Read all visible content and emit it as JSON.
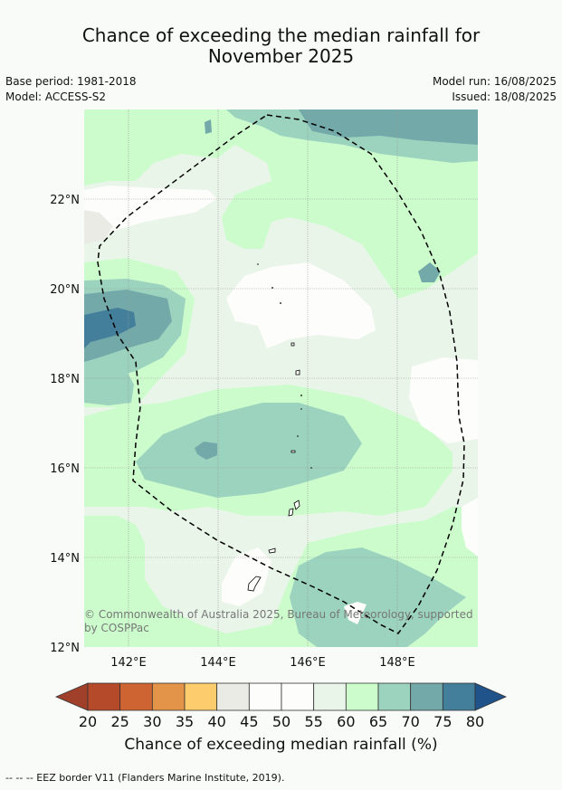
{
  "title": {
    "line1": "Chance of exceeding the median rainfall for",
    "line2": "November 2025"
  },
  "meta": {
    "base_period": "Base period: 1981-2018",
    "model": "Model: ACCESS-S2",
    "model_run": "Model run: 16/08/2025",
    "issued": "Issued: 18/08/2025"
  },
  "map": {
    "lat_labels": [
      "22°N",
      "20°N",
      "18°N",
      "16°N",
      "14°N",
      "12°N"
    ],
    "lon_labels": [
      "142°E",
      "144°E",
      "146°E",
      "148°E"
    ],
    "colors": {
      "c40_45": "#ebebe6",
      "c45_55": "#fdfdfb",
      "c55_60": "#eaf5ea",
      "c60_65": "#ccfccc",
      "c65_70": "#9bd3bf",
      "c70_75": "#74a9a9",
      "c75_80": "#437e9b"
    }
  },
  "copyright": "© Commonwealth of Australia 2025, Bureau of Meteorology, supported by COSPPac",
  "colorbar": {
    "ticks": [
      "20",
      "25",
      "30",
      "35",
      "40",
      "45",
      "50",
      "55",
      "60",
      "65",
      "70",
      "75",
      "80"
    ],
    "colors": [
      "#a0402b",
      "#b54a2b",
      "#cf6433",
      "#e49449",
      "#fdcc6c",
      "#ebebe6",
      "#fdfdfb",
      "#fdfdfb",
      "#eaf5ea",
      "#ccfccc",
      "#9bd3bf",
      "#74a9a9",
      "#437e9b",
      "#1f538a"
    ],
    "label": "Chance of exceeding median rainfall (%)"
  },
  "footnote": "--  --  -- EEZ border V11 (Flanders Marine Institute, 2019)."
}
